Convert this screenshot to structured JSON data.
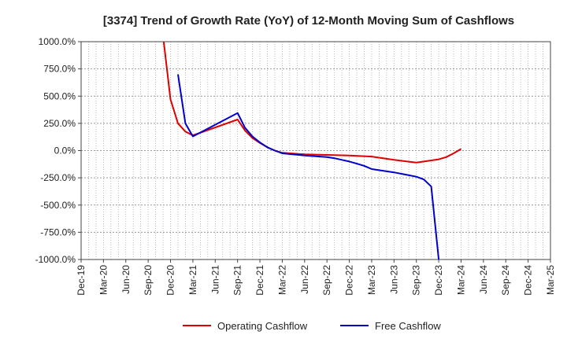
{
  "chart_data": {
    "type": "line",
    "title": "[3374]  Trend of Growth Rate (YoY) of 12-Month Moving Sum of Cashflows",
    "xlabel": "",
    "ylabel": "",
    "x_ticks": [
      "Dec-19",
      "Mar-20",
      "Jun-20",
      "Sep-20",
      "Dec-20",
      "Mar-21",
      "Jun-21",
      "Sep-21",
      "Dec-21",
      "Mar-22",
      "Jun-22",
      "Sep-22",
      "Dec-22",
      "Mar-23",
      "Jun-23",
      "Sep-23",
      "Dec-23",
      "Mar-24",
      "Jun-24",
      "Sep-24",
      "Dec-24",
      "Mar-25"
    ],
    "y_ticks": [
      "1000.0%",
      "750.0%",
      "500.0%",
      "250.0%",
      "0.0%",
      "-250.0%",
      "-500.0%",
      "-750.0%",
      "-1000.0%"
    ],
    "ylim": [
      -1000,
      1000
    ],
    "grid": true,
    "legend_position": "bottom",
    "series": [
      {
        "name": "Operating Cashflow",
        "color": "#dd0000",
        "points": [
          [
            "Nov-20",
            1050
          ],
          [
            "Dec-20",
            470
          ],
          [
            "Jan-21",
            250
          ],
          [
            "Feb-21",
            175
          ],
          [
            "Mar-21",
            140
          ],
          [
            "Sep-21",
            285
          ],
          [
            "Oct-21",
            185
          ],
          [
            "Nov-21",
            115
          ],
          [
            "Dec-21",
            70
          ],
          [
            "Jan-22",
            30
          ],
          [
            "Feb-22",
            0
          ],
          [
            "Mar-22",
            -20
          ],
          [
            "Jun-22",
            -35
          ],
          [
            "Sep-22",
            -40
          ],
          [
            "Dec-22",
            -45
          ],
          [
            "Mar-23",
            -55
          ],
          [
            "Jun-23",
            -85
          ],
          [
            "Sep-23",
            -110
          ],
          [
            "Dec-23",
            -80
          ],
          [
            "Jan-24",
            -60
          ],
          [
            "Feb-24",
            -25
          ],
          [
            "Mar-24",
            15
          ]
        ]
      },
      {
        "name": "Free Cashflow",
        "color": "#0000cc",
        "points": [
          [
            "Jan-21",
            700
          ],
          [
            "Feb-21",
            250
          ],
          [
            "Mar-21",
            130
          ],
          [
            "Sep-21",
            345
          ],
          [
            "Oct-21",
            210
          ],
          [
            "Nov-21",
            130
          ],
          [
            "Dec-21",
            75
          ],
          [
            "Jan-22",
            30
          ],
          [
            "Feb-22",
            0
          ],
          [
            "Mar-22",
            -25
          ],
          [
            "Jun-22",
            -45
          ],
          [
            "Sep-22",
            -60
          ],
          [
            "Oct-22",
            -70
          ],
          [
            "Nov-22",
            -85
          ],
          [
            "Dec-22",
            -100
          ],
          [
            "Jan-23",
            -120
          ],
          [
            "Feb-23",
            -140
          ],
          [
            "Mar-23",
            -170
          ],
          [
            "Jun-23",
            -200
          ],
          [
            "Sep-23",
            -240
          ],
          [
            "Oct-23",
            -265
          ],
          [
            "Nov-23",
            -330
          ],
          [
            "Dec-23",
            -1000
          ]
        ]
      }
    ]
  }
}
